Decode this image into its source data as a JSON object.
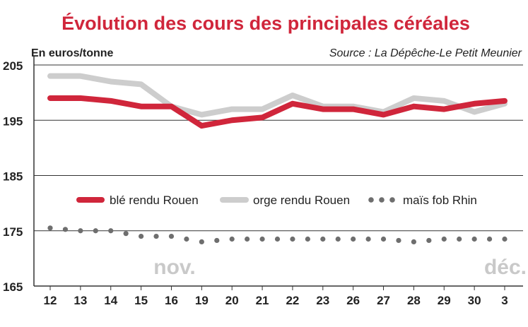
{
  "chart_data": {
    "type": "line",
    "title": "Évolution des cours des principales céréales",
    "ylabel": "En euros/tonne",
    "source": "Source : La Dépêche-Le Petit Meunier",
    "categories": [
      "12",
      "13",
      "14",
      "15",
      "16",
      "19",
      "20",
      "21",
      "22",
      "23",
      "26",
      "27",
      "28",
      "29",
      "30",
      "3"
    ],
    "month_labels": [
      "nov.",
      "déc."
    ],
    "y_ticks": [
      165,
      175,
      185,
      195,
      205
    ],
    "ylim": [
      165,
      205
    ],
    "grid": "horizontal",
    "legend_position": "middle",
    "series": [
      {
        "name": "blé rendu Rouen",
        "style": "solid",
        "color": "#d0263b",
        "values": [
          199,
          199,
          198.5,
          197.5,
          197.5,
          194,
          195,
          195.5,
          198,
          197,
          197,
          196,
          197.5,
          197,
          198,
          198.5
        ]
      },
      {
        "name": "orge rendu Rouen",
        "style": "solid",
        "color": "#cdcdcd",
        "values": [
          203,
          203,
          202,
          201.5,
          197.5,
          196,
          197,
          197,
          199.5,
          197.5,
          197.5,
          196.5,
          199,
          198.5,
          196.5,
          198
        ]
      },
      {
        "name": "maïs fob Rhin",
        "style": "dotted",
        "color": "#6e6e6e",
        "values": [
          175.5,
          175,
          175,
          174,
          174,
          173,
          173.5,
          173.5,
          173.5,
          173.5,
          173.5,
          173.5,
          173,
          173.5,
          173.5,
          173.5
        ]
      }
    ],
    "colors": {
      "title": "#d0263b",
      "grid": "#333333",
      "month_label": "#c9c9c9",
      "text": "#222222"
    }
  }
}
